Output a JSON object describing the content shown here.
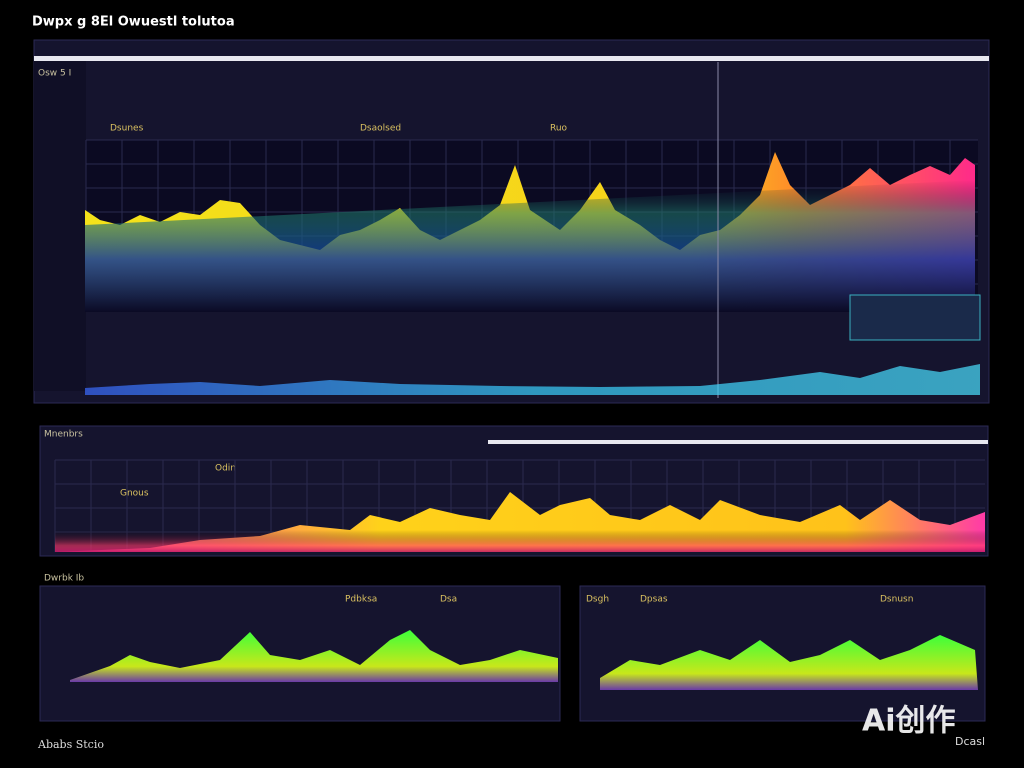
{
  "header": {
    "title": "Dwpx g 8El Owuestl tolutoa"
  },
  "panels": [
    {
      "label": "Osw 5 I",
      "tabs": [
        "Dsunes",
        "Dsaolsed",
        "Ruo"
      ]
    },
    {
      "label": "Mnenbrs",
      "tabs": [
        "Gnous",
        "Odin"
      ]
    },
    {
      "label": "Dwrbk Ib",
      "tabs": [
        "Pdbksa",
        "Dsa"
      ]
    },
    {
      "label": "Dsgh",
      "tabs": [
        "Dpsas",
        "Dsnusn"
      ]
    }
  ],
  "footer": {
    "left": "Ababs Stcio",
    "right": "Dcasl"
  },
  "watermark": "Ai创作"
}
